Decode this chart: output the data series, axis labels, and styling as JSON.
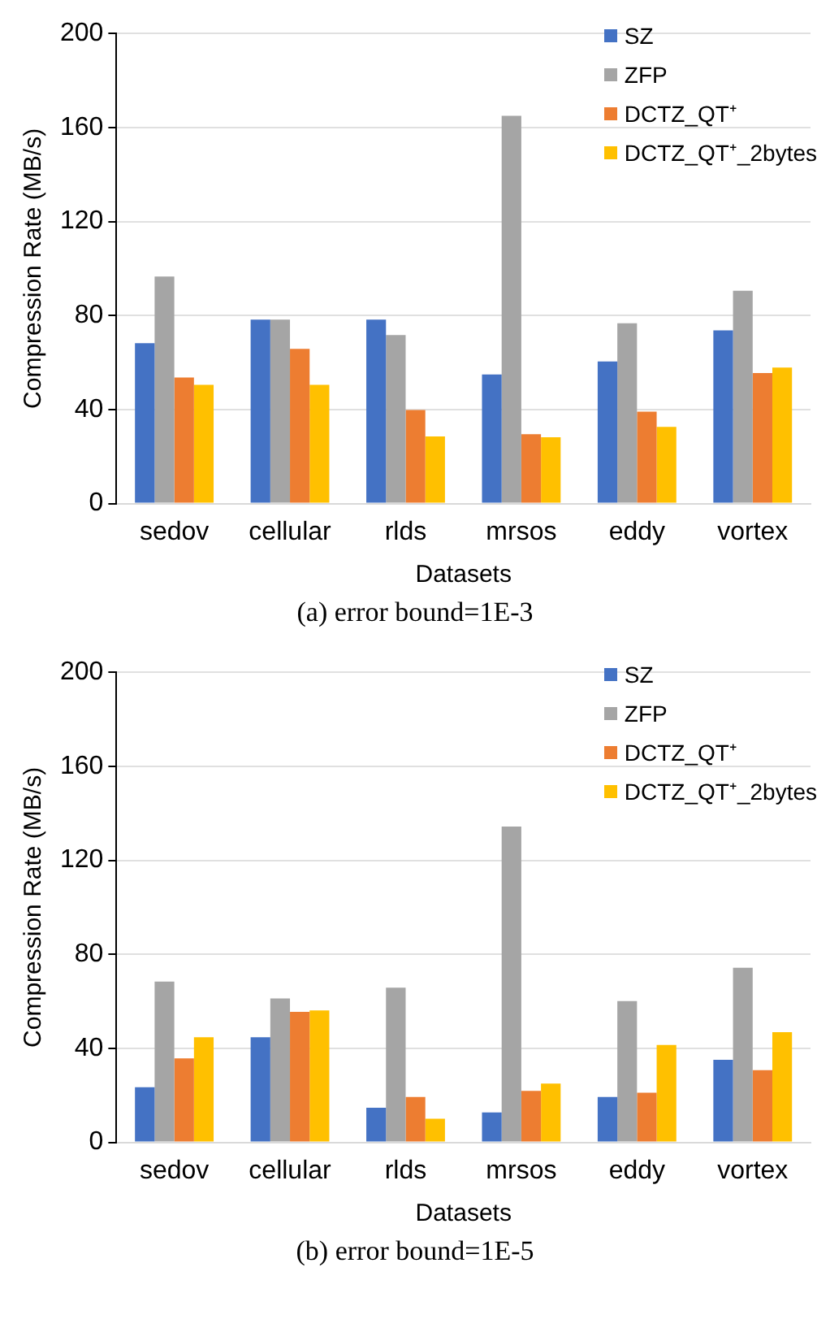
{
  "chart_data": [
    {
      "type": "bar",
      "xlabel": "Datasets",
      "ylabel": "Compression Rate (MB/s)",
      "categories": [
        "sedov",
        "cellular",
        "rlds",
        "mrsos",
        "eddy",
        "vortex"
      ],
      "series": [
        {
          "name": "SZ",
          "color": "#4472c4",
          "values": [
            68.2,
            78.3,
            78.3,
            54.9,
            60.5,
            73.7
          ]
        },
        {
          "name": "ZFP",
          "color": "#a5a5a5",
          "values": [
            96.6,
            78.3,
            71.7,
            165,
            76.7,
            90.5
          ]
        },
        {
          "name": "DCTZ_QT⁺",
          "color": "#ed7d31",
          "values": [
            53.6,
            65.8,
            39.8,
            29.5,
            39.1,
            55.5
          ]
        },
        {
          "name": "DCTZ_QT⁺_2bytes",
          "color": "#ffc000",
          "values": [
            50.5,
            50.5,
            28.6,
            28.2,
            32.6,
            57.9
          ]
        }
      ],
      "ylim": [
        0,
        200
      ],
      "yticks": [
        0,
        40,
        80,
        120,
        160,
        200
      ],
      "grid": "y",
      "legend": "top right",
      "annotations": [
        "(a) error bound=1E-3"
      ]
    },
    {
      "type": "bar",
      "xlabel": "Datasets",
      "ylabel": "Compression Rate (MB/s)",
      "categories": [
        "sedov",
        "cellular",
        "rlds",
        "mrsos",
        "eddy",
        "vortex"
      ],
      "series": [
        {
          "name": "SZ",
          "color": "#4472c4",
          "values": [
            23.5,
            44.7,
            14.7,
            12.7,
            19.3,
            35.1
          ]
        },
        {
          "name": "ZFP",
          "color": "#a5a5a5",
          "values": [
            68.4,
            61.2,
            65.8,
            134.4,
            60.1,
            74.3
          ]
        },
        {
          "name": "DCTZ_QT⁺",
          "color": "#ed7d31",
          "values": [
            35.7,
            55.5,
            19.3,
            21.9,
            21.1,
            30.7
          ]
        },
        {
          "name": "DCTZ_QT⁺_2bytes",
          "color": "#ffc000",
          "values": [
            44.7,
            56.1,
            10.1,
            25,
            41.4,
            46.9
          ]
        }
      ],
      "ylim": [
        0,
        200
      ],
      "yticks": [
        0,
        40,
        80,
        120,
        160,
        200
      ],
      "grid": "y",
      "legend": "top right",
      "annotations": [
        "(b) error bound=1E-5"
      ]
    }
  ]
}
